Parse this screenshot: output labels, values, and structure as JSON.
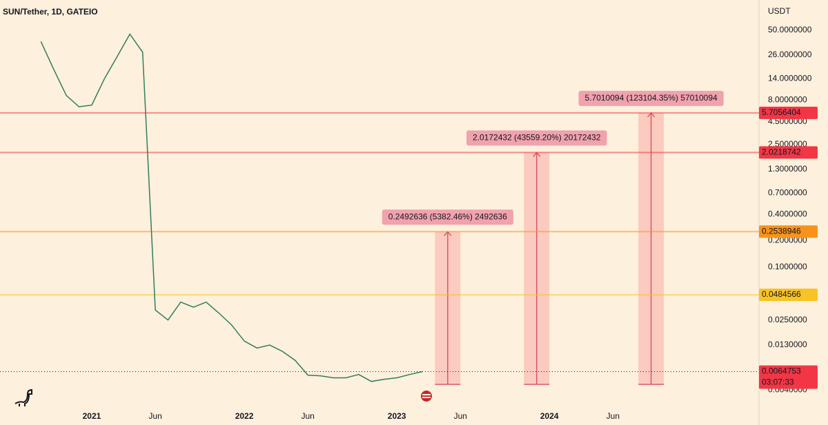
{
  "chart_data": {
    "type": "line",
    "title": "SUN/Tether, 1D, GATEIO",
    "y_unit": "USDT",
    "log_scale": true,
    "color": "#2f7d5b",
    "x": [
      "2020-09",
      "2020-10",
      "2020-11",
      "2020-12",
      "2021-01",
      "2021-02",
      "2021-03",
      "2021-04",
      "2021-05",
      "2021-06",
      "2021-07",
      "2021-08",
      "2021-09",
      "2021-10",
      "2021-11",
      "2021-12",
      "2022-01",
      "2022-02",
      "2022-03",
      "2022-04",
      "2022-05",
      "2022-06",
      "2022-07",
      "2022-08",
      "2022-09",
      "2022-10",
      "2022-11",
      "2022-12",
      "2023-01",
      "2023-02",
      "2023-03"
    ],
    "values": [
      37,
      18,
      9,
      6.7,
      7,
      14,
      25,
      45,
      28,
      0.0325,
      0.025,
      0.04,
      0.035,
      0.04,
      0.03,
      0.022,
      0.0144,
      0.012,
      0.013,
      0.011,
      0.0087,
      0.0059,
      0.0058,
      0.0055,
      0.0055,
      0.006,
      0.005,
      0.0053,
      0.0055,
      0.006,
      0.0064753
    ],
    "xlim": [
      "2020-06",
      "2025-05"
    ],
    "xticks": [
      {
        "value": "2021-01",
        "label": "2021"
      },
      {
        "value": "2021-06",
        "label": "Jun"
      },
      {
        "value": "2022-01",
        "label": "2022"
      },
      {
        "value": "2022-06",
        "label": "Jun"
      },
      {
        "value": "2023-01",
        "label": "2023"
      },
      {
        "value": "2023-06",
        "label": "Jun"
      },
      {
        "value": "2024-01",
        "label": "2024"
      },
      {
        "value": "2024-06",
        "label": "Jun"
      }
    ],
    "ylim": [
      0.0026,
      110
    ],
    "yticks": [
      {
        "value": 50,
        "label": "50.0000000"
      },
      {
        "value": 26,
        "label": "26.0000000"
      },
      {
        "value": 14,
        "label": "14.0000000"
      },
      {
        "value": 8,
        "label": "8.0000000"
      },
      {
        "value": 4.5,
        "label": "4.5000000"
      },
      {
        "value": 2.5,
        "label": "2.5000000"
      },
      {
        "value": 1.3,
        "label": "1.3000000"
      },
      {
        "value": 0.7,
        "label": "0.7000000"
      },
      {
        "value": 0.4,
        "label": "0.4000000"
      },
      {
        "value": 0.2,
        "label": "0.2000000"
      },
      {
        "value": 0.1,
        "label": "0.1000000"
      },
      {
        "value": 0.025,
        "label": "0.0250000"
      },
      {
        "value": 0.013,
        "label": "0.0130000"
      },
      {
        "value": 0.004,
        "label": "0.0040000"
      }
    ],
    "levels": [
      {
        "value": 5.7056404,
        "color": "#f23645"
      },
      {
        "value": 2.0218742,
        "color": "#f23645"
      },
      {
        "value": 0.2538946,
        "color": "#f7931a"
      },
      {
        "value": 0.0484566,
        "color": "#f7c325"
      }
    ],
    "last_price": {
      "value": 0.0064753,
      "countdown": "03:07:33",
      "color": "#f23645"
    },
    "measurements": [
      {
        "x": [
          "2023-04",
          "2023-06"
        ],
        "low": 0.004631,
        "high": 0.2538946,
        "label": "0.2492636 (5382.46%) 2492636"
      },
      {
        "x": [
          "2023-11",
          "2024-01"
        ],
        "low": 0.004631,
        "high": 2.0218742,
        "label": "2.0172432 (43559.20%) 20172432"
      },
      {
        "x": [
          "2024-08",
          "2024-10"
        ],
        "low": 0.004631,
        "high": 5.7056404,
        "label": "5.7010094 (123104.35%) 57010094"
      }
    ]
  }
}
